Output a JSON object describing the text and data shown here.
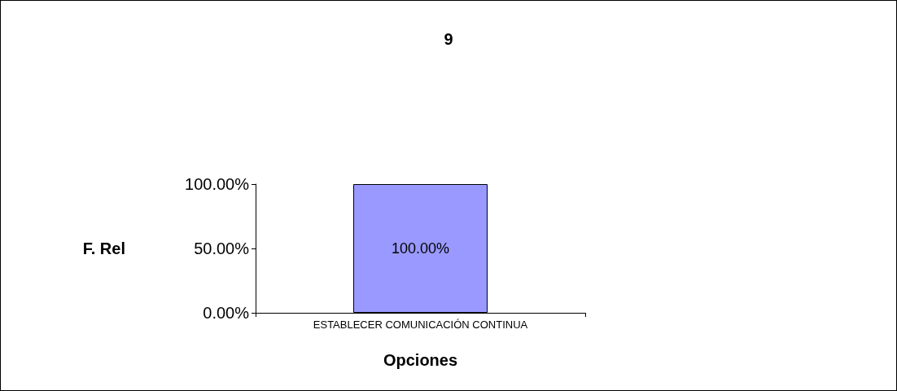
{
  "chart_data": {
    "type": "bar",
    "title": "9",
    "xlabel": "Opciones",
    "ylabel": "F. Rel",
    "categories": [
      "ESTABLECER COMUNICACIÓN CONTINUA"
    ],
    "values": [
      100
    ],
    "value_labels": [
      "100.00%"
    ],
    "color": "#9999ff",
    "ylim": [
      0,
      100
    ],
    "yticks": [
      {
        "value": 0,
        "label": "0.00%"
      },
      {
        "value": 50,
        "label": "50.00%"
      },
      {
        "value": 100,
        "label": "100.00%"
      }
    ],
    "grid": false
  }
}
